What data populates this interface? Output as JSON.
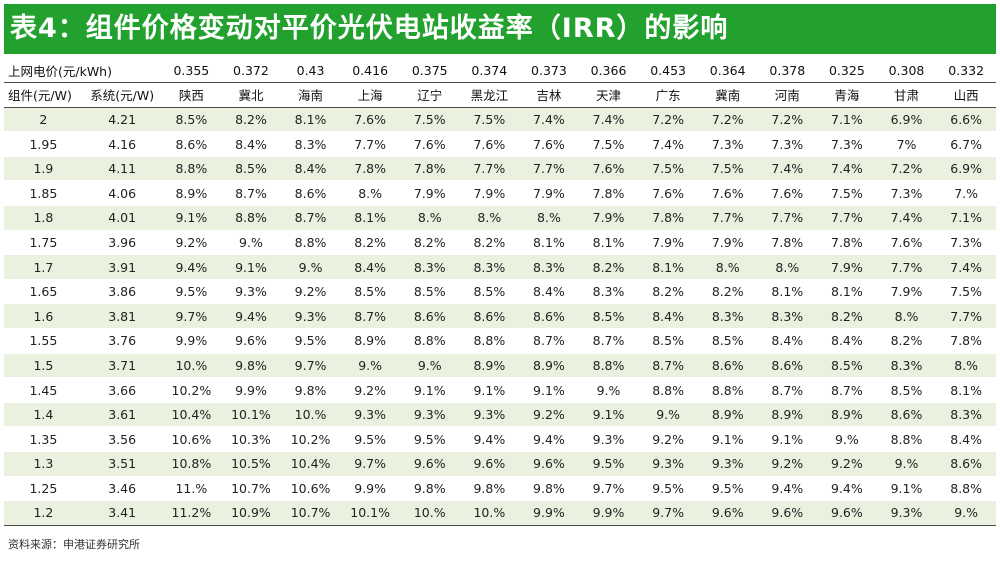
{
  "title": "表4：组件价格变动对平价光伏电站收益率（IRR）的影响",
  "table": {
    "price_row_label": "上网电价(元/kWh)",
    "prices": [
      "0.355",
      "0.372",
      "0.43",
      "0.416",
      "0.375",
      "0.374",
      "0.373",
      "0.366",
      "0.453",
      "0.364",
      "0.378",
      "0.325",
      "0.308",
      "0.332"
    ],
    "col_module": "组件(元/W)",
    "col_system": "系统(元/W)",
    "provinces": [
      "陕西",
      "冀北",
      "海南",
      "上海",
      "辽宁",
      "黑龙江",
      "吉林",
      "天津",
      "广东",
      "冀南",
      "河南",
      "青海",
      "甘肃",
      "山西"
    ],
    "rows": [
      {
        "module": "2",
        "system": "4.21",
        "irr": [
          "8.5%",
          "8.2%",
          "8.1%",
          "7.6%",
          "7.5%",
          "7.5%",
          "7.4%",
          "7.4%",
          "7.2%",
          "7.2%",
          "7.2%",
          "7.1%",
          "6.9%",
          "6.6%"
        ]
      },
      {
        "module": "1.95",
        "system": "4.16",
        "irr": [
          "8.6%",
          "8.4%",
          "8.3%",
          "7.7%",
          "7.6%",
          "7.6%",
          "7.6%",
          "7.5%",
          "7.4%",
          "7.3%",
          "7.3%",
          "7.3%",
          "7%",
          "6.7%"
        ]
      },
      {
        "module": "1.9",
        "system": "4.11",
        "irr": [
          "8.8%",
          "8.5%",
          "8.4%",
          "7.8%",
          "7.8%",
          "7.7%",
          "7.7%",
          "7.6%",
          "7.5%",
          "7.5%",
          "7.4%",
          "7.4%",
          "7.2%",
          "6.9%"
        ]
      },
      {
        "module": "1.85",
        "system": "4.06",
        "irr": [
          "8.9%",
          "8.7%",
          "8.6%",
          "8.%",
          "7.9%",
          "7.9%",
          "7.9%",
          "7.8%",
          "7.6%",
          "7.6%",
          "7.6%",
          "7.5%",
          "7.3%",
          "7.%"
        ]
      },
      {
        "module": "1.8",
        "system": "4.01",
        "irr": [
          "9.1%",
          "8.8%",
          "8.7%",
          "8.1%",
          "8.%",
          "8.%",
          "8.%",
          "7.9%",
          "7.8%",
          "7.7%",
          "7.7%",
          "7.7%",
          "7.4%",
          "7.1%"
        ]
      },
      {
        "module": "1.75",
        "system": "3.96",
        "irr": [
          "9.2%",
          "9.%",
          "8.8%",
          "8.2%",
          "8.2%",
          "8.2%",
          "8.1%",
          "8.1%",
          "7.9%",
          "7.9%",
          "7.8%",
          "7.8%",
          "7.6%",
          "7.3%"
        ]
      },
      {
        "module": "1.7",
        "system": "3.91",
        "irr": [
          "9.4%",
          "9.1%",
          "9.%",
          "8.4%",
          "8.3%",
          "8.3%",
          "8.3%",
          "8.2%",
          "8.1%",
          "8.%",
          "8.%",
          "7.9%",
          "7.7%",
          "7.4%"
        ]
      },
      {
        "module": "1.65",
        "system": "3.86",
        "irr": [
          "9.5%",
          "9.3%",
          "9.2%",
          "8.5%",
          "8.5%",
          "8.5%",
          "8.4%",
          "8.3%",
          "8.2%",
          "8.2%",
          "8.1%",
          "8.1%",
          "7.9%",
          "7.5%"
        ]
      },
      {
        "module": "1.6",
        "system": "3.81",
        "irr": [
          "9.7%",
          "9.4%",
          "9.3%",
          "8.7%",
          "8.6%",
          "8.6%",
          "8.6%",
          "8.5%",
          "8.4%",
          "8.3%",
          "8.3%",
          "8.2%",
          "8.%",
          "7.7%"
        ]
      },
      {
        "module": "1.55",
        "system": "3.76",
        "irr": [
          "9.9%",
          "9.6%",
          "9.5%",
          "8.9%",
          "8.8%",
          "8.8%",
          "8.7%",
          "8.7%",
          "8.5%",
          "8.5%",
          "8.4%",
          "8.4%",
          "8.2%",
          "7.8%"
        ]
      },
      {
        "module": "1.5",
        "system": "3.71",
        "irr": [
          "10.%",
          "9.8%",
          "9.7%",
          "9.%",
          "9.%",
          "8.9%",
          "8.9%",
          "8.8%",
          "8.7%",
          "8.6%",
          "8.6%",
          "8.5%",
          "8.3%",
          "8.%"
        ]
      },
      {
        "module": "1.45",
        "system": "3.66",
        "irr": [
          "10.2%",
          "9.9%",
          "9.8%",
          "9.2%",
          "9.1%",
          "9.1%",
          "9.1%",
          "9.%",
          "8.8%",
          "8.8%",
          "8.7%",
          "8.7%",
          "8.5%",
          "8.1%"
        ]
      },
      {
        "module": "1.4",
        "system": "3.61",
        "irr": [
          "10.4%",
          "10.1%",
          "10.%",
          "9.3%",
          "9.3%",
          "9.3%",
          "9.2%",
          "9.1%",
          "9.%",
          "8.9%",
          "8.9%",
          "8.9%",
          "8.6%",
          "8.3%"
        ]
      },
      {
        "module": "1.35",
        "system": "3.56",
        "irr": [
          "10.6%",
          "10.3%",
          "10.2%",
          "9.5%",
          "9.5%",
          "9.4%",
          "9.4%",
          "9.3%",
          "9.2%",
          "9.1%",
          "9.1%",
          "9.%",
          "8.8%",
          "8.4%"
        ]
      },
      {
        "module": "1.3",
        "system": "3.51",
        "irr": [
          "10.8%",
          "10.5%",
          "10.4%",
          "9.7%",
          "9.6%",
          "9.6%",
          "9.6%",
          "9.5%",
          "9.3%",
          "9.3%",
          "9.2%",
          "9.2%",
          "9.%",
          "8.6%"
        ]
      },
      {
        "module": "1.25",
        "system": "3.46",
        "irr": [
          "11.%",
          "10.7%",
          "10.6%",
          "9.9%",
          "9.8%",
          "9.8%",
          "9.8%",
          "9.7%",
          "9.5%",
          "9.5%",
          "9.4%",
          "9.4%",
          "9.1%",
          "8.8%"
        ]
      },
      {
        "module": "1.2",
        "system": "3.41",
        "irr": [
          "11.2%",
          "10.9%",
          "10.7%",
          "10.1%",
          "10.%",
          "10.%",
          "9.9%",
          "9.9%",
          "9.7%",
          "9.6%",
          "9.6%",
          "9.6%",
          "9.3%",
          "9.%"
        ]
      }
    ]
  },
  "source": "资料来源：申港证券研究所",
  "colors": {
    "title_bg": "#22a12f",
    "row_alt": "#eaf1df",
    "rule": "#4a4a4a"
  }
}
